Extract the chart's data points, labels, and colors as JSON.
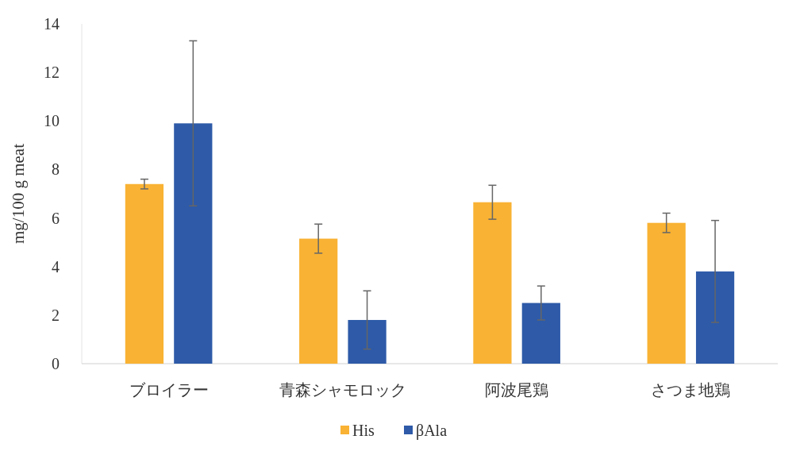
{
  "chart_data": {
    "type": "bar",
    "ylabel": "mg/100 g meat",
    "categories": [
      "ブロイラー",
      "青森シャモロック",
      "阿波尾鶏",
      "さつま地鶏"
    ],
    "series": [
      {
        "name": "His",
        "color": "#f9b233",
        "values": [
          7.4,
          5.15,
          6.65,
          5.8
        ],
        "errors": [
          0.2,
          0.6,
          0.7,
          0.4
        ]
      },
      {
        "name": "βAla",
        "color": "#2e5aa8",
        "values": [
          9.9,
          1.8,
          2.5,
          3.8
        ],
        "errors": [
          3.4,
          1.2,
          0.7,
          2.1
        ]
      }
    ],
    "ylim": [
      0,
      14
    ],
    "yticks": [
      0,
      2,
      4,
      6,
      8,
      10,
      12,
      14
    ],
    "grid": false,
    "legend": "bottom"
  }
}
